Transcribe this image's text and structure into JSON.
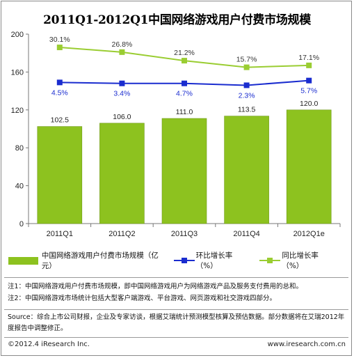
{
  "chart_data": {
    "type": "bar",
    "title": "2011Q1-2012Q1中国网络游戏用户付费市场规模",
    "categories": [
      "2011Q1",
      "2011Q2",
      "2011Q3",
      "2011Q4",
      "2012Q1e"
    ],
    "ylim": [
      0,
      200
    ],
    "yticks": [
      0,
      40,
      80,
      120,
      160,
      200
    ],
    "grid": false,
    "legend_position": "bottom",
    "series": [
      {
        "name": "中国网络游戏用户付费市场规模（亿元）",
        "kind": "bar",
        "color": "#8dc21f",
        "values": [
          102.5,
          106.0,
          111.0,
          113.5,
          120.0
        ],
        "labels": [
          "102.5",
          "106.0",
          "111.0",
          "113.5",
          "120.0"
        ]
      },
      {
        "name": "环比增长率（%）",
        "kind": "line",
        "color": "#1a2ccf",
        "values": [
          4.5,
          3.4,
          4.7,
          2.3,
          5.7
        ],
        "plot_values": [
          149,
          148,
          148,
          146,
          151
        ],
        "labels": [
          "4.5%",
          "3.4%",
          "4.7%",
          "2.3%",
          "5.7%"
        ]
      },
      {
        "name": "同比增长率（%）",
        "kind": "line",
        "color": "#9acd32",
        "values": [
          30.1,
          26.8,
          21.2,
          15.7,
          17.1
        ],
        "plot_values": [
          186,
          181,
          172,
          165,
          167
        ],
        "labels": [
          "30.1%",
          "26.8%",
          "21.2%",
          "15.7%",
          "17.1%"
        ]
      }
    ]
  },
  "notes": [
    "注1：中国网络游戏用户付费市场规模，即中国网络游戏用户为网络游戏产品及服务支付费用的总和。",
    "注2：中国网络游戏市场统计包括大型客户端游戏、平台游戏、网页游戏和社交游戏四部分。"
  ],
  "source": "Source：综合上市公司财报，企业及专家访谈，根据艾瑞统计预测模型核算及预估数据。部分数据将在艾瑞2012年度报告中调整修正。",
  "copyright": "©2012.4 iResearch Inc.",
  "website": "www.iresearch.com.cn"
}
